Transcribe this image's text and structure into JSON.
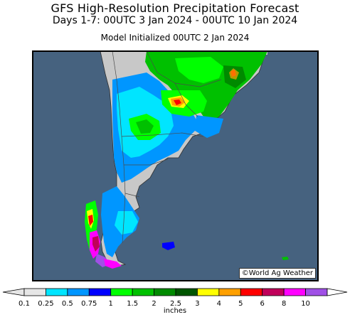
{
  "title": "GFS High-Resolution Precipitation Forecast",
  "subtitle": "Days 1-7: 00UTC 3 Jan 2024 - 00UTC 10 Jan 2024",
  "initialized": "Model Initialized 00UTC 2 Jan 2024",
  "credit": "©World Ag Weather",
  "legend": {
    "unit": "inches",
    "ticks": [
      "0.1",
      "0.25",
      "0.5",
      "0.75",
      "1",
      "1.5",
      "2",
      "2.5",
      "3",
      "4",
      "5",
      "6",
      "8",
      "10"
    ],
    "colors": [
      "#e6e6e6",
      "#00e5ff",
      "#0096ff",
      "#0000ff",
      "#00ff00",
      "#00c000",
      "#008a00",
      "#005500",
      "#ffff00",
      "#ffa000",
      "#ff0000",
      "#c0005a",
      "#ff00ff",
      "#a050e6"
    ]
  },
  "colors": {
    "ocean": "#46627f",
    "land": "#c8c8c8",
    "border": "#5a5a5a"
  }
}
